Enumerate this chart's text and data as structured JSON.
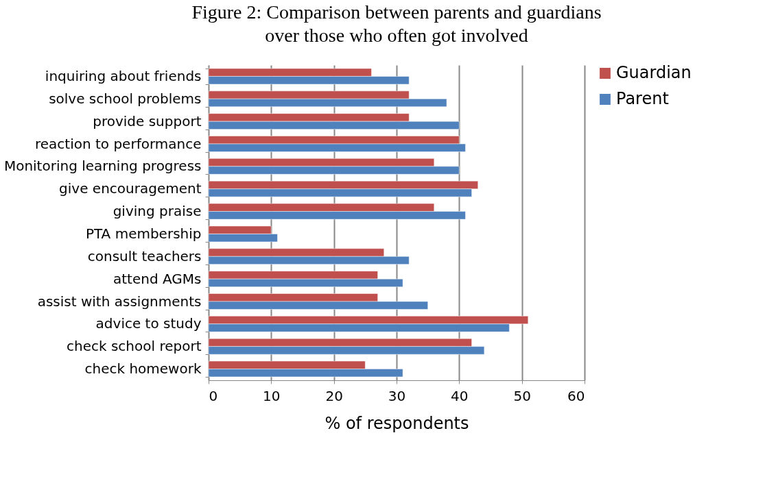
{
  "chart_data": {
    "type": "bar",
    "orientation": "horizontal",
    "title": "Figure 2: Comparison between parents and guardians over those who often got involved",
    "xlabel": "% of respondents",
    "categories": [
      "inquiring about friends",
      "solve school problems",
      "provide support",
      "reaction to performance",
      "Monitoring learning progress",
      "give encouragement",
      "giving praise",
      "PTA membership",
      "consult teachers",
      "attend AGMs",
      "assist with assignments",
      "advice to study",
      "check school report",
      "check homework"
    ],
    "series": [
      {
        "name": "Guardian",
        "color": "#c0504d",
        "values": [
          26,
          32,
          32,
          40,
          36,
          43,
          36,
          10,
          28,
          27,
          27,
          51,
          42,
          25
        ]
      },
      {
        "name": "Parent",
        "color": "#4f81bd",
        "values": [
          32,
          38,
          40,
          41,
          40,
          42,
          41,
          11,
          32,
          31,
          35,
          48,
          44,
          31
        ]
      }
    ],
    "xlim": [
      0,
      60
    ],
    "xticks": [
      0,
      10,
      20,
      30,
      40,
      50,
      60
    ],
    "grid": "x",
    "legend": "right"
  }
}
